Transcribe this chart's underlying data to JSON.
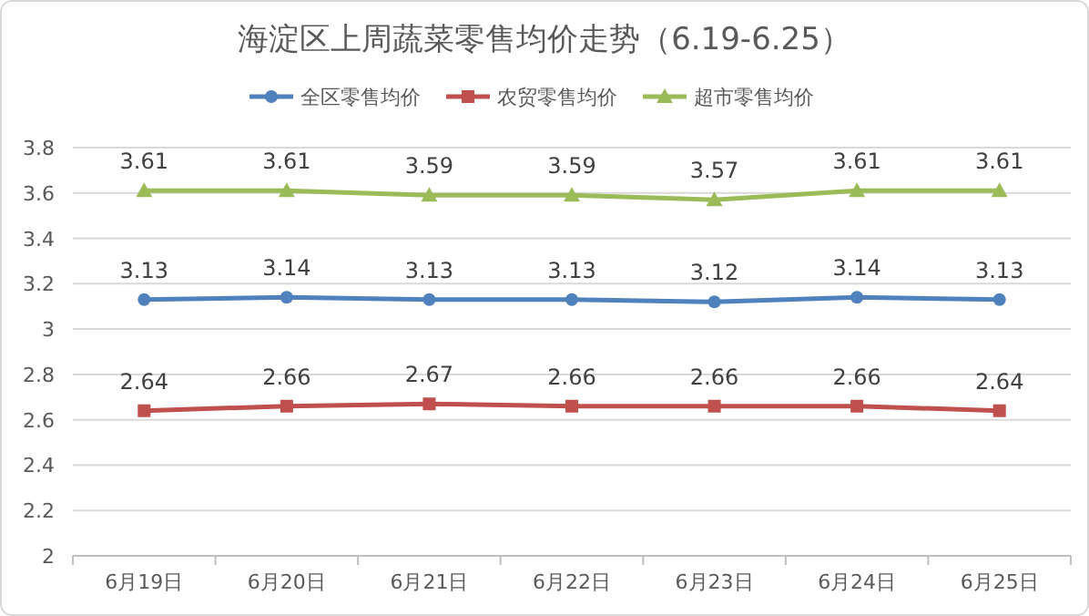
{
  "chart_data": {
    "type": "line",
    "title": "海淀区上周蔬菜零售均价走势（6.19-6.25）",
    "categories": [
      "6月19日",
      "6月20日",
      "6月21日",
      "6月22日",
      "6月23日",
      "6月24日",
      "6月25日"
    ],
    "series": [
      {
        "name": "全区零售均价",
        "color": "#4f81bd",
        "marker": "circle",
        "values": [
          3.13,
          3.14,
          3.13,
          3.13,
          3.12,
          3.14,
          3.13
        ]
      },
      {
        "name": "农贸零售均价",
        "color": "#c0504d",
        "marker": "square",
        "values": [
          2.64,
          2.66,
          2.67,
          2.66,
          2.66,
          2.66,
          2.64
        ]
      },
      {
        "name": "超市零售均价",
        "color": "#9bbb59",
        "marker": "triangle",
        "values": [
          3.61,
          3.61,
          3.59,
          3.59,
          3.57,
          3.61,
          3.61
        ]
      }
    ],
    "ylim": [
      2,
      3.8
    ],
    "yticks": [
      2,
      2.2,
      2.4,
      2.6,
      2.8,
      3,
      3.2,
      3.4,
      3.6,
      3.8
    ],
    "grid": "y",
    "legend": "top",
    "data_labels": true,
    "line_style": "solid"
  }
}
